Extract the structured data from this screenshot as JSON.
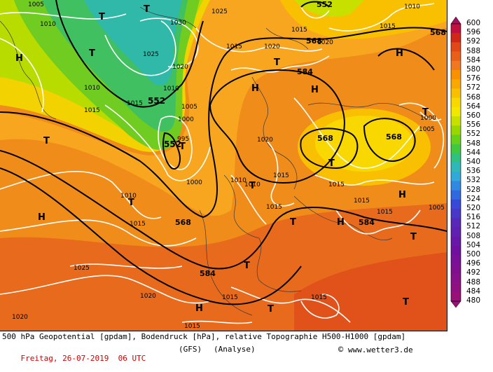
{
  "legend": {
    "values": [
      "600",
      "596",
      "592",
      "588",
      "584",
      "580",
      "576",
      "572",
      "568",
      "564",
      "560",
      "556",
      "552",
      "548",
      "544",
      "540",
      "536",
      "532",
      "528",
      "524",
      "520",
      "516",
      "512",
      "508",
      "504",
      "500",
      "496",
      "492",
      "488",
      "484",
      "480"
    ],
    "colors": [
      "#a01060",
      "#c01040",
      "#d02818",
      "#e04818",
      "#e86018",
      "#f07820",
      "#f89000",
      "#f8a800",
      "#f8c000",
      "#f8d800",
      "#f0e800",
      "#c8e000",
      "#98d800",
      "#68d018",
      "#40c840",
      "#30c080",
      "#30b8b8",
      "#30a8d8",
      "#3088e0",
      "#3068e0",
      "#3848d8",
      "#4838c8",
      "#5828b8",
      "#6020b0",
      "#6818a8",
      "#7010a0",
      "#781098",
      "#801090",
      "#881088",
      "#901080",
      "#981078"
    ]
  },
  "map": {
    "height_labels": [
      {
        "text": "552",
        "kind": "height"
      },
      {
        "text": "552",
        "kind": "height"
      },
      {
        "text": "568",
        "kind": "height"
      },
      {
        "text": "568",
        "kind": "height"
      },
      {
        "text": "568",
        "kind": "height"
      },
      {
        "text": "584",
        "kind": "height"
      },
      {
        "text": "568",
        "kind": "height"
      },
      {
        "text": "568",
        "kind": "height"
      },
      {
        "text": "584",
        "kind": "height"
      },
      {
        "text": "584",
        "kind": "height"
      },
      {
        "text": "552",
        "kind": "height"
      }
    ],
    "pressure_labels": [
      "1005",
      "1010",
      "1015",
      "1020",
      "1025",
      "1030",
      "1010",
      "1015",
      "1025",
      "1020",
      "1010",
      "1005",
      "1000",
      "995",
      "1000",
      "1015",
      "1010",
      "1015",
      "1020",
      "1015",
      "1010",
      "1020",
      "1015",
      "1015",
      "1010",
      "1015",
      "1015",
      "1015",
      "1005",
      "1015",
      "1000",
      "1005",
      "1015",
      "1010",
      "1025",
      "1020",
      "1015",
      "1020",
      "1015"
    ],
    "pressure_centers": [
      "T",
      "T",
      "T",
      "H",
      "T",
      "H",
      "H",
      "T",
      "H",
      "T",
      "T",
      "T",
      "T",
      "H",
      "T",
      "T",
      "H",
      "T",
      "T",
      "T",
      "H",
      "H",
      "T"
    ]
  },
  "footer": {
    "line1": "500 hPa Geopotential [gpdam], Bodendruck [hPa], relative Topographie H500-H1000 [gpdam]",
    "date": "Freitag, 26-07-2019  06 UTC",
    "model": "(GFS)",
    "analysis": "(Analyse)",
    "credit": "www.wetter3.de",
    "credit_symbol": "©"
  }
}
